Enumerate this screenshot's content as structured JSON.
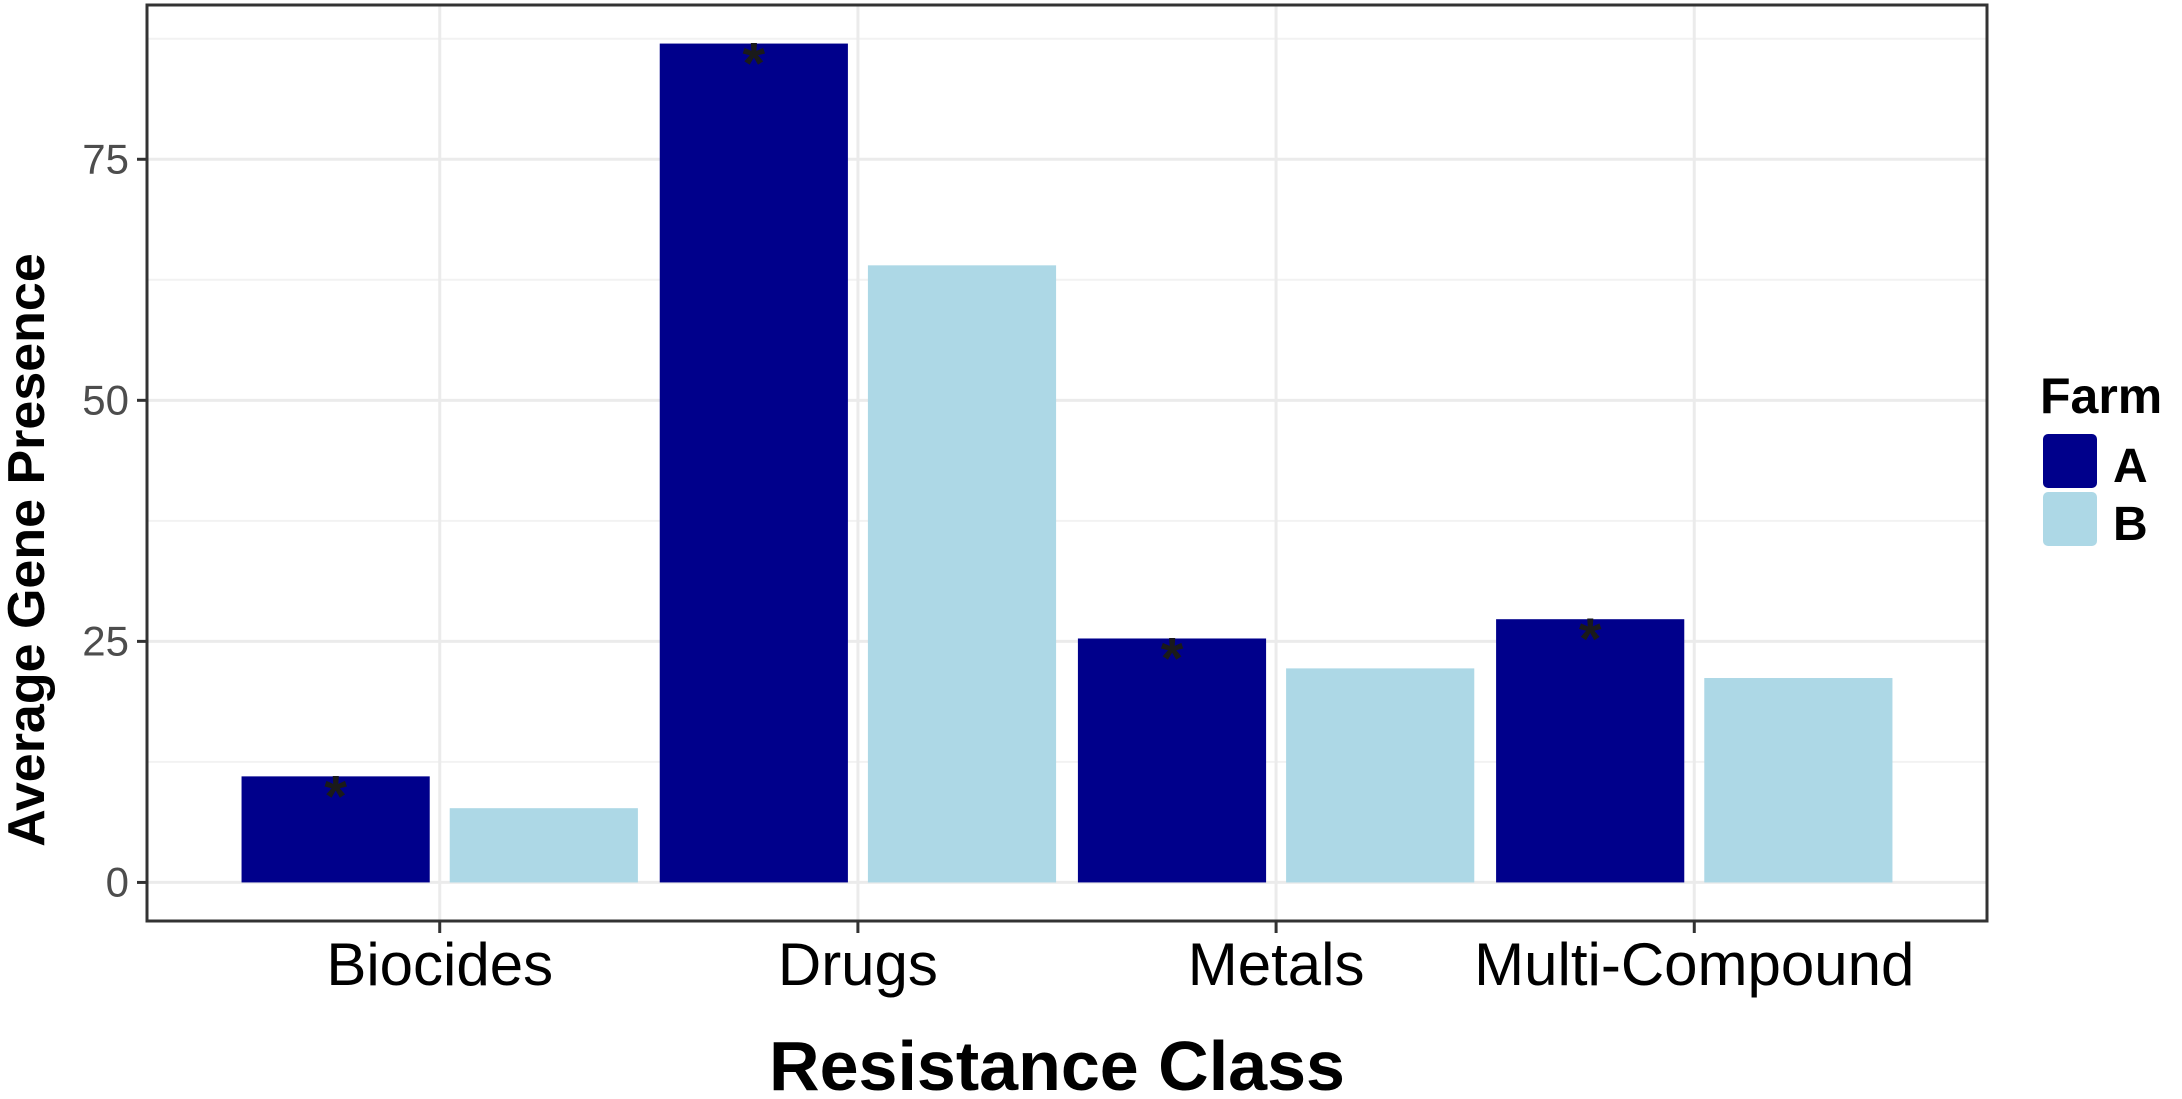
{
  "chart_data": {
    "type": "bar",
    "categories": [
      "Biocides",
      "Drugs",
      "Metals",
      "Multi-Compound"
    ],
    "series": [
      {
        "name": "A",
        "color": "#00008B",
        "values": [
          11,
          87,
          25.3,
          27.3
        ]
      },
      {
        "name": "B",
        "color": "#ADD8E6",
        "values": [
          7.7,
          64,
          22.2,
          21.2
        ]
      }
    ],
    "significance": {
      "series": "A",
      "marker": "*",
      "categories": [
        "Biocides",
        "Drugs",
        "Metals",
        "Multi-Compound"
      ]
    },
    "xlabel": "Resistance Class",
    "ylabel": "Average Gene Presence",
    "ylim": [
      -4,
      91
    ],
    "yticks": [
      0,
      25,
      50,
      75
    ],
    "ytick_labels": [
      "0",
      "25",
      "50",
      "75"
    ],
    "grid": true,
    "legend": {
      "title": "Farm",
      "placement": "right",
      "entries": [
        "A",
        "B"
      ]
    }
  }
}
